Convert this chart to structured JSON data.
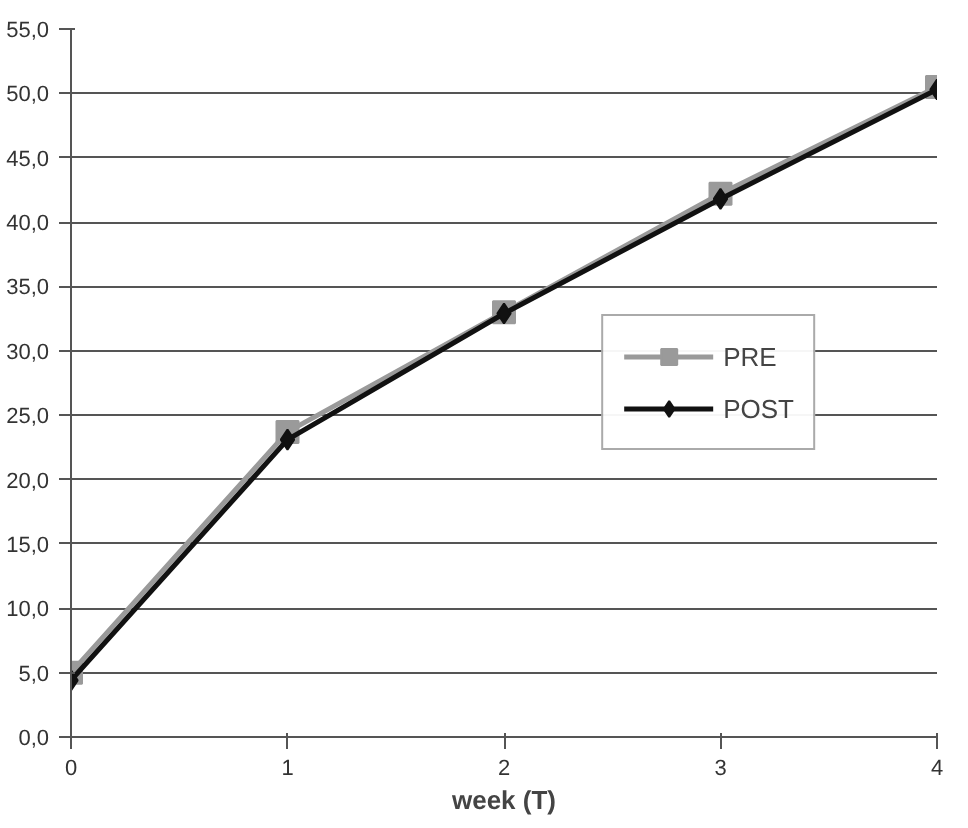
{
  "chart_data": {
    "type": "line",
    "xlabel": "week (T)",
    "x": [
      0,
      1,
      2,
      3,
      4
    ],
    "series": [
      {
        "name": "PRE",
        "color": "#9a9a9a",
        "marker": "square",
        "values": [
          5.0,
          23.7,
          33.0,
          42.2,
          50.5
        ]
      },
      {
        "name": "POST",
        "color": "#111111",
        "marker": "diamond",
        "values": [
          4.4,
          23.1,
          32.9,
          41.8,
          50.3
        ]
      }
    ],
    "xlim": [
      0,
      4
    ],
    "xticks": [
      0,
      1,
      2,
      3,
      4
    ],
    "ylim": [
      0,
      55
    ],
    "yticks": [
      {
        "value": 0,
        "label": "0,0"
      },
      {
        "value": 5,
        "label": "5,0"
      },
      {
        "value": 10,
        "label": "10,0"
      },
      {
        "value": 15,
        "label": "15,0"
      },
      {
        "value": 20,
        "label": "20,0"
      },
      {
        "value": 25,
        "label": "25,0"
      },
      {
        "value": 30,
        "label": "30,0"
      },
      {
        "value": 35,
        "label": "35,0"
      },
      {
        "value": 40,
        "label": "40,0"
      },
      {
        "value": 45,
        "label": "45,0"
      },
      {
        "value": 50,
        "label": "50,0"
      },
      {
        "value": 55,
        "label": "55,0"
      }
    ],
    "grid": "y",
    "legend": "right",
    "line_style": "solid"
  }
}
